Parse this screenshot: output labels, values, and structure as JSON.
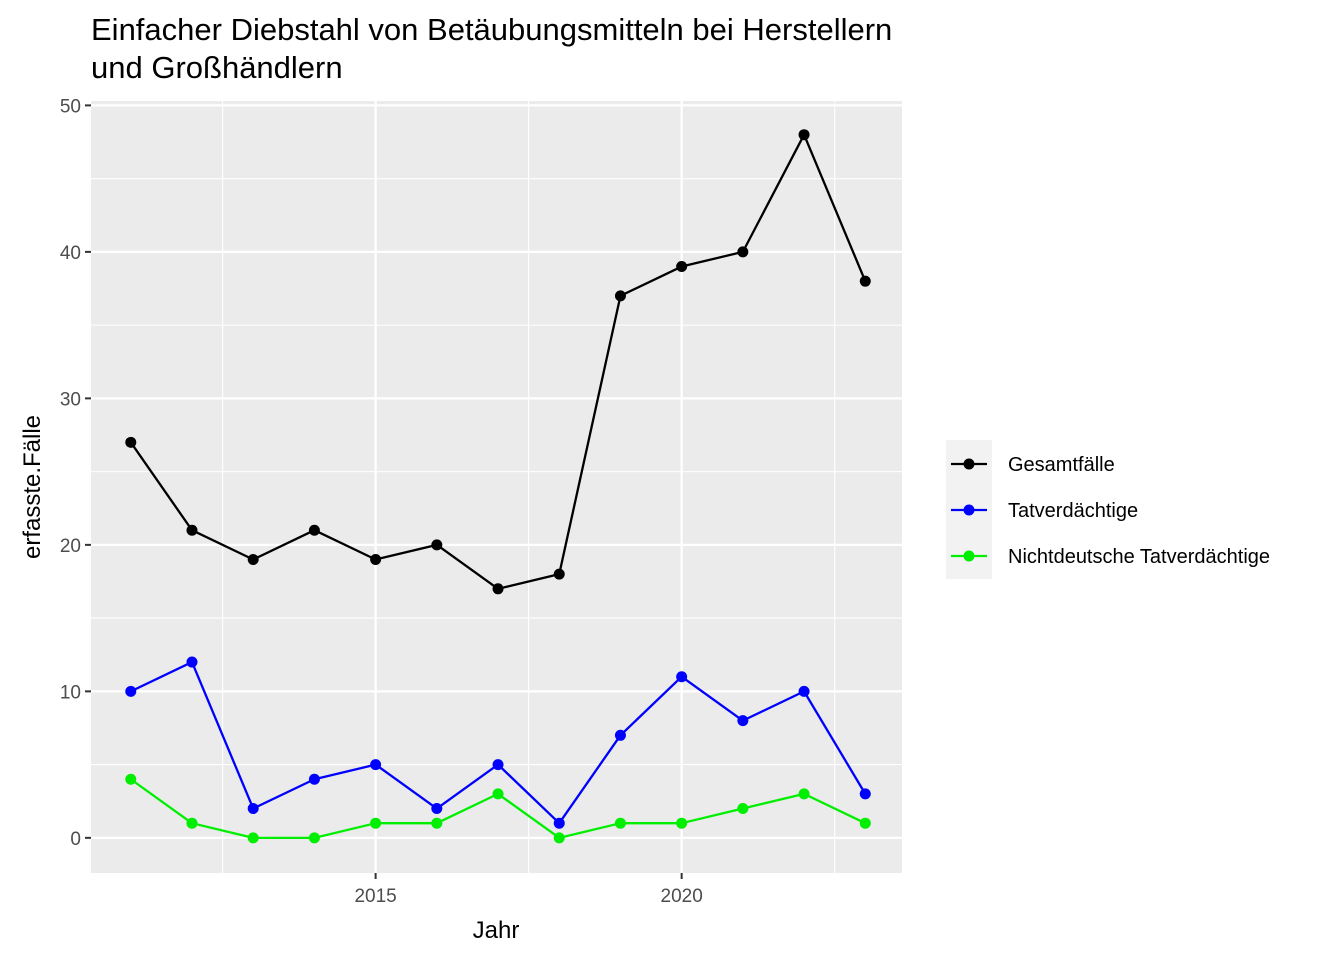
{
  "chart_data": {
    "type": "line",
    "title_lines": [
      "Einfacher Diebstahl von Betäubungsmitteln bei Herstellern",
      "und Großhändlern"
    ],
    "xlabel": "Jahr",
    "ylabel": "erfasste.Fälle",
    "x": [
      2011,
      2012,
      2013,
      2014,
      2015,
      2016,
      2017,
      2018,
      2019,
      2020,
      2021,
      2022,
      2023
    ],
    "xlim": [
      2010.35,
      2023.6
    ],
    "ylim": [
      -2.4,
      50.3
    ],
    "x_ticks": [
      2015,
      2020
    ],
    "x_tick_labels": [
      "2015",
      "2020"
    ],
    "y_ticks": [
      0,
      10,
      20,
      30,
      40,
      50
    ],
    "y_tick_labels": [
      "0",
      "10",
      "20",
      "30",
      "40",
      "50"
    ],
    "grid": true,
    "legend_position": "right",
    "series": [
      {
        "name": "Gesamtfälle",
        "color": "#000000",
        "values": [
          27,
          21,
          19,
          21,
          19,
          20,
          17,
          18,
          37,
          39,
          40,
          48,
          38
        ]
      },
      {
        "name": "Tatverdächtige",
        "color": "#0000ff",
        "values": [
          10,
          12,
          2,
          4,
          5,
          2,
          5,
          1,
          7,
          11,
          8,
          10,
          3
        ]
      },
      {
        "name": "Nichtdeutsche Tatverdächtige",
        "color": "#00ee00",
        "values": [
          4,
          1,
          0,
          0,
          1,
          1,
          3,
          0,
          1,
          1,
          2,
          3,
          1
        ]
      }
    ]
  }
}
